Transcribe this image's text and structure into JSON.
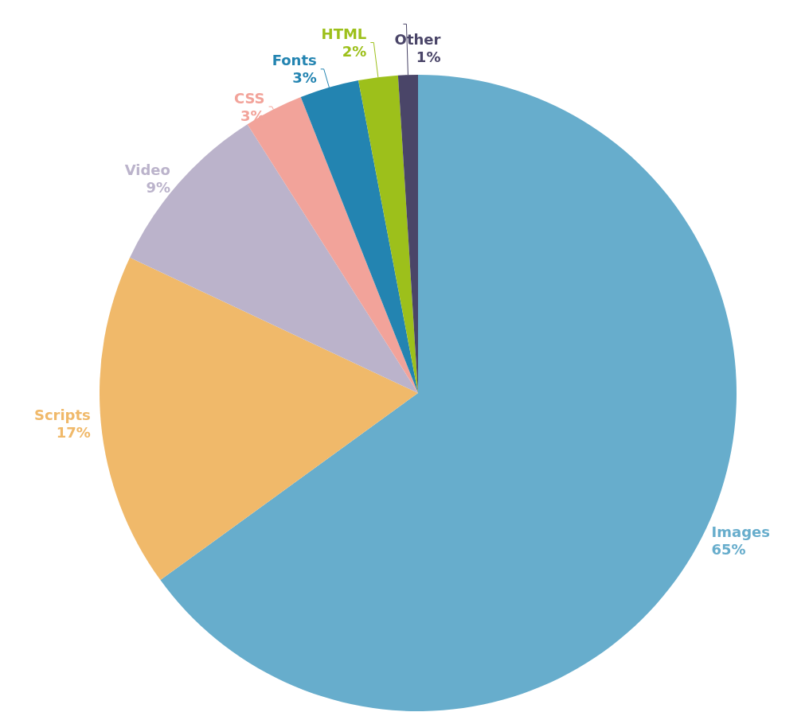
{
  "chart_data": {
    "type": "pie",
    "categories": [
      "Images",
      "Scripts",
      "Video",
      "CSS",
      "Fonts",
      "HTML",
      "Other"
    ],
    "values": [
      65,
      17,
      9,
      3,
      3,
      2,
      1
    ],
    "value_labels": [
      "65%",
      "17%",
      "9%",
      "3%",
      "3%",
      "2%",
      "1%"
    ],
    "colors": [
      "#67adcc",
      "#f0b96a",
      "#bbb3cb",
      "#f2a39a",
      "#2384b1",
      "#9dc01b",
      "#4a4568"
    ],
    "legend": false
  }
}
